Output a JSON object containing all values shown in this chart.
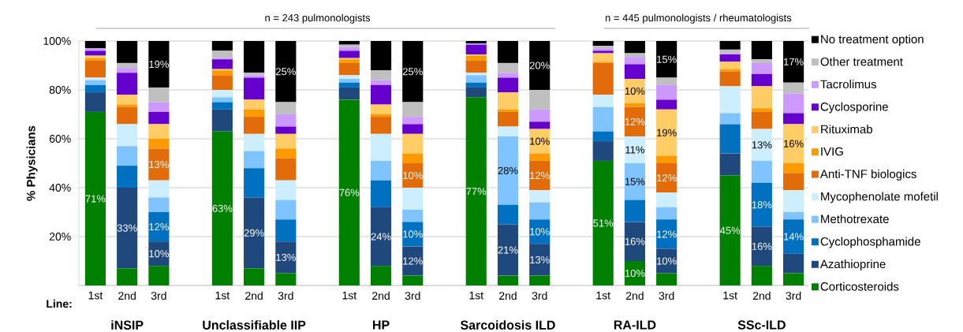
{
  "chart_data": {
    "type": "bar",
    "stacked": true,
    "ylabel": "% Physicians",
    "categories": [
      "1st",
      "2nd",
      "3rd",
      "1st",
      "2nd",
      "3rd",
      "1st",
      "2nd",
      "3rd",
      "1st",
      "2nd",
      "3rd",
      "1st",
      "2nd",
      "3rd",
      "1st",
      "2nd",
      "3rd"
    ],
    "ylim": [
      0,
      100
    ],
    "yticks": [
      {
        "value": 0,
        "label": null
      },
      {
        "value": 20,
        "label": "20%"
      },
      {
        "value": 40,
        "label": "40%"
      },
      {
        "value": 60,
        "label": "60%"
      },
      {
        "value": 80,
        "label": "80%"
      },
      {
        "value": 100,
        "label": "100%"
      }
    ],
    "grid": "y",
    "legend": "right",
    "annotations": [
      "n = 243 pulmonologists",
      "n = 445 pulmonologists / rheumatologists",
      "Line:",
      "iNSIP",
      "Unclassifiable IIP",
      "HP",
      "Sarcoidosis ILD",
      "RA-ILD",
      "SSc-ILD"
    ],
    "series": [
      {
        "name": "Corticosteroids",
        "color": "#008000",
        "values": [
          71,
          7,
          8,
          63,
          7,
          5,
          76,
          8,
          4,
          77,
          4,
          4,
          51,
          10,
          5,
          45,
          8,
          5
        ],
        "value_labels": [
          "71%",
          null,
          null,
          "63%",
          null,
          null,
          "76%",
          null,
          null,
          "77%",
          null,
          null,
          "51%",
          "10%",
          null,
          "45%",
          null,
          null
        ]
      },
      {
        "name": "Azathioprine",
        "color": "#1f497d",
        "values": [
          8,
          33,
          10,
          9,
          29,
          13,
          5,
          24,
          12,
          4,
          21,
          13,
          8,
          16,
          10,
          9,
          16,
          8
        ],
        "value_labels": [
          null,
          "33%",
          "10%",
          null,
          "29%",
          "13%",
          null,
          "24%",
          "12%",
          null,
          "21%",
          "13%",
          null,
          "16%",
          "10%",
          null,
          "16%",
          null
        ]
      },
      {
        "name": "Cyclophosphamide",
        "color": "#0070c0",
        "values": [
          3,
          9,
          12,
          3,
          12,
          9,
          2,
          11,
          10,
          2,
          8,
          10,
          4,
          9,
          12,
          12,
          18,
          14
        ],
        "value_labels": [
          null,
          null,
          "12%",
          null,
          null,
          null,
          null,
          null,
          "10%",
          null,
          null,
          "10%",
          null,
          null,
          "12%",
          null,
          "18%",
          "14%"
        ]
      },
      {
        "name": "Methotrexate",
        "color": "#80c4ff",
        "values": [
          2,
          8,
          6,
          2,
          7,
          8,
          1.5,
          8,
          5,
          3,
          28,
          7,
          10,
          15,
          5,
          4.5,
          9,
          3
        ],
        "value_labels": [
          null,
          null,
          null,
          null,
          null,
          null,
          null,
          null,
          null,
          null,
          "28%",
          null,
          null,
          "15%",
          null,
          null,
          null,
          null
        ]
      },
      {
        "name": "Mycophenolate mofetil",
        "color": "#cceeff",
        "values": [
          1,
          9,
          7,
          3,
          7,
          8,
          1.5,
          11,
          9,
          1,
          4,
          5,
          5,
          11,
          6,
          11,
          13,
          9
        ],
        "value_labels": [
          null,
          null,
          null,
          null,
          null,
          null,
          null,
          null,
          null,
          null,
          null,
          null,
          null,
          "11%",
          null,
          null,
          "13%",
          null
        ]
      },
      {
        "name": "Anti-TNF biologics",
        "color": "#e26b0a",
        "values": [
          7,
          7,
          13,
          6,
          7,
          9,
          5,
          7,
          10,
          5,
          6,
          12,
          13,
          12,
          12,
          6,
          7,
          7
        ],
        "value_labels": [
          null,
          null,
          "13%",
          null,
          null,
          null,
          null,
          null,
          "10%",
          null,
          null,
          "12%",
          null,
          "12%",
          "12%",
          null,
          null,
          null
        ]
      },
      {
        "name": "IVIG",
        "color": "#ff9900",
        "values": [
          1,
          1,
          4,
          2,
          3,
          4,
          1.5,
          1,
          4,
          2,
          1,
          3,
          0.5,
          1.5,
          3,
          1,
          1.5,
          4
        ]
      },
      {
        "name": "Rituximab",
        "color": "#ffcc66",
        "values": [
          1,
          4,
          6,
          0.5,
          4,
          6,
          0.5,
          4,
          8,
          0.5,
          7,
          10,
          3.5,
          10,
          19,
          3,
          9,
          16
        ],
        "value_labels": [
          null,
          null,
          null,
          null,
          null,
          null,
          null,
          null,
          null,
          null,
          null,
          "10%",
          null,
          "10%",
          "19%",
          null,
          null,
          "16%"
        ]
      },
      {
        "name": "Cyclosporine",
        "color": "#6600cc",
        "values": [
          2,
          9,
          5,
          4,
          9,
          3,
          3,
          8,
          4,
          4,
          6,
          3,
          1,
          6,
          4,
          3,
          5,
          4.5
        ]
      },
      {
        "name": "Tacrolimus",
        "color": "#cc99ff",
        "values": [
          1,
          2,
          4,
          0.5,
          1,
          5,
          1.5,
          2,
          3,
          0.5,
          2,
          5,
          1,
          3,
          6,
          0.5,
          4.5,
          8
        ]
      },
      {
        "name": "Other treatment",
        "color": "#bfbfbf",
        "values": [
          0,
          2,
          6,
          3,
          1,
          5,
          1,
          4,
          6,
          0,
          4,
          8,
          1,
          1.5,
          3,
          1.5,
          1.5,
          4.5
        ]
      },
      {
        "name": "No treatment option",
        "color": "#000000",
        "values": [
          3,
          9,
          19,
          4,
          13,
          25,
          1.5,
          12,
          25,
          1,
          9,
          20,
          2,
          5,
          15,
          3.5,
          7.5,
          17
        ],
        "value_labels": [
          null,
          null,
          "19%",
          null,
          null,
          "25%",
          null,
          null,
          "25%",
          null,
          null,
          "20%",
          null,
          null,
          "15%",
          null,
          null,
          "17%"
        ]
      }
    ]
  }
}
